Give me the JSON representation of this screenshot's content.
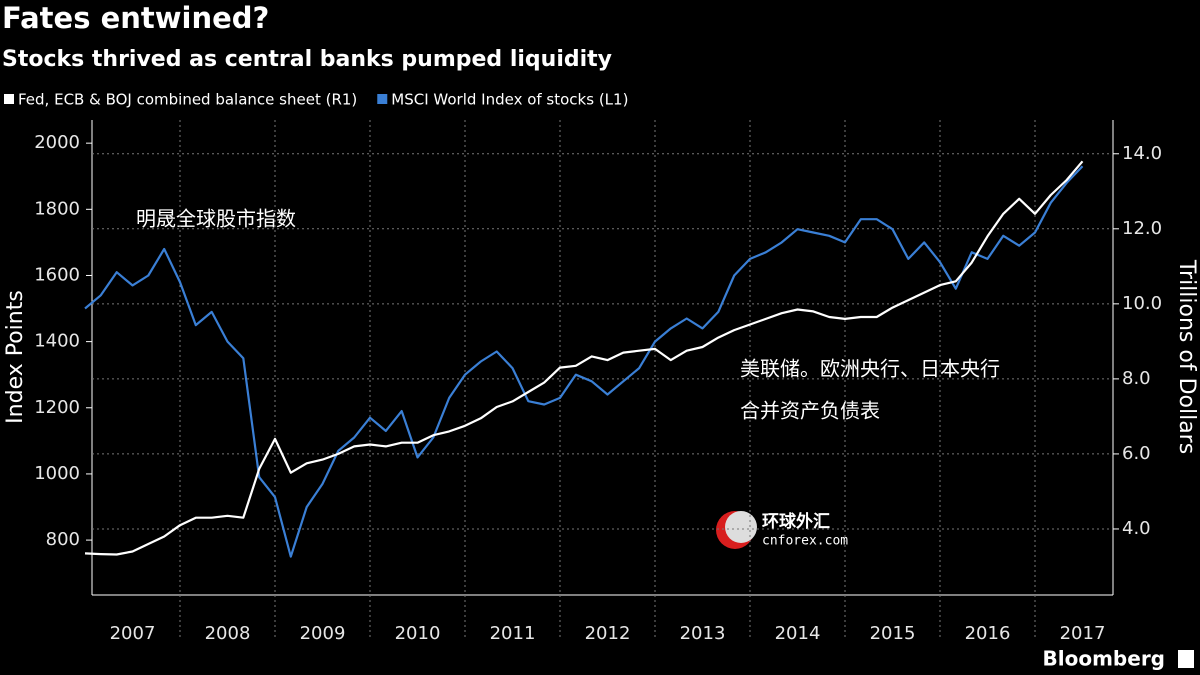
{
  "chart_data": {
    "type": "line",
    "title": "Fates entwined?",
    "subtitle": "Stocks thrived as central banks pumped liquidity",
    "ylabel": "Index Points",
    "y2label": "Trillions of Dollars",
    "source": "Bloomberg",
    "annotations": [
      "明晟全球股市指数",
      "美联储。欧洲央行、日本央行",
      "合并资产负债表"
    ],
    "watermark": [
      "环球外汇",
      "cnforex.com"
    ],
    "categories": [
      null,
      null,
      null,
      "2007",
      null,
      null,
      null,
      null,
      null,
      "2008",
      null,
      null,
      null,
      null,
      null,
      "2009",
      null,
      null,
      null,
      null,
      null,
      "2010",
      null,
      null,
      null,
      null,
      null,
      "2011",
      null,
      null,
      null,
      null,
      null,
      "2012",
      null,
      null,
      null,
      null,
      null,
      "2013",
      null,
      null,
      null,
      null,
      null,
      "2014",
      null,
      null,
      null,
      null,
      null,
      "2015",
      null,
      null,
      null,
      null,
      null,
      "2016",
      null,
      null,
      null,
      null,
      null,
      "2017"
    ],
    "series": [
      {
        "name": "Fed, ECB & BOJ combined balance sheet (R1)",
        "color": "#ffffff",
        "axis": "y2",
        "values": [
          3.35,
          3.33,
          3.32,
          3.4,
          3.6,
          3.8,
          4.1,
          4.3,
          4.3,
          4.35,
          4.3,
          5.6,
          6.4,
          5.5,
          5.75,
          5.85,
          6.0,
          6.2,
          6.25,
          6.2,
          6.3,
          6.3,
          6.5,
          6.6,
          6.75,
          6.95,
          7.25,
          7.4,
          7.65,
          7.9,
          8.3,
          8.35,
          8.6,
          8.5,
          8.7,
          8.75,
          8.8,
          8.5,
          8.75,
          8.85,
          9.1,
          9.3,
          9.45,
          9.6,
          9.75,
          9.85,
          9.8,
          9.65,
          9.6,
          9.65,
          9.65,
          9.9,
          10.1,
          10.3,
          10.5,
          10.6,
          11.1,
          11.8,
          12.4,
          12.8,
          12.4,
          12.9,
          13.3,
          13.8
        ]
      },
      {
        "name": "MSCI World Index of stocks (L1)",
        "color": "#3a7fd5",
        "values": [
          1500,
          1540,
          1610,
          1570,
          1600,
          1680,
          1580,
          1450,
          1490,
          1400,
          1350,
          990,
          930,
          750,
          900,
          970,
          1070,
          1110,
          1170,
          1130,
          1190,
          1050,
          1110,
          1230,
          1300,
          1340,
          1370,
          1320,
          1220,
          1210,
          1230,
          1300,
          1280,
          1240,
          1280,
          1320,
          1400,
          1440,
          1470,
          1440,
          1490,
          1600,
          1650,
          1670,
          1700,
          1740,
          1730,
          1720,
          1700,
          1770,
          1770,
          1740,
          1650,
          1700,
          1640,
          1560,
          1670,
          1650,
          1720,
          1690,
          1730,
          1820,
          1880,
          1930
        ]
      }
    ],
    "ylim": [
      634,
      2070
    ],
    "yticks": [
      800,
      1000,
      1200,
      1400,
      1600,
      1800,
      2000
    ],
    "y2lim": [
      2.24,
      14.9
    ],
    "y2ticks": [
      {
        "value": 4,
        "label": "4.0"
      },
      {
        "value": 6,
        "label": "6.0"
      },
      {
        "value": 8,
        "label": "8.0"
      },
      {
        "value": 10,
        "label": "10.0"
      },
      {
        "value": 12,
        "label": "12.0"
      },
      {
        "value": 14,
        "label": "14.0"
      }
    ],
    "grid": true
  }
}
